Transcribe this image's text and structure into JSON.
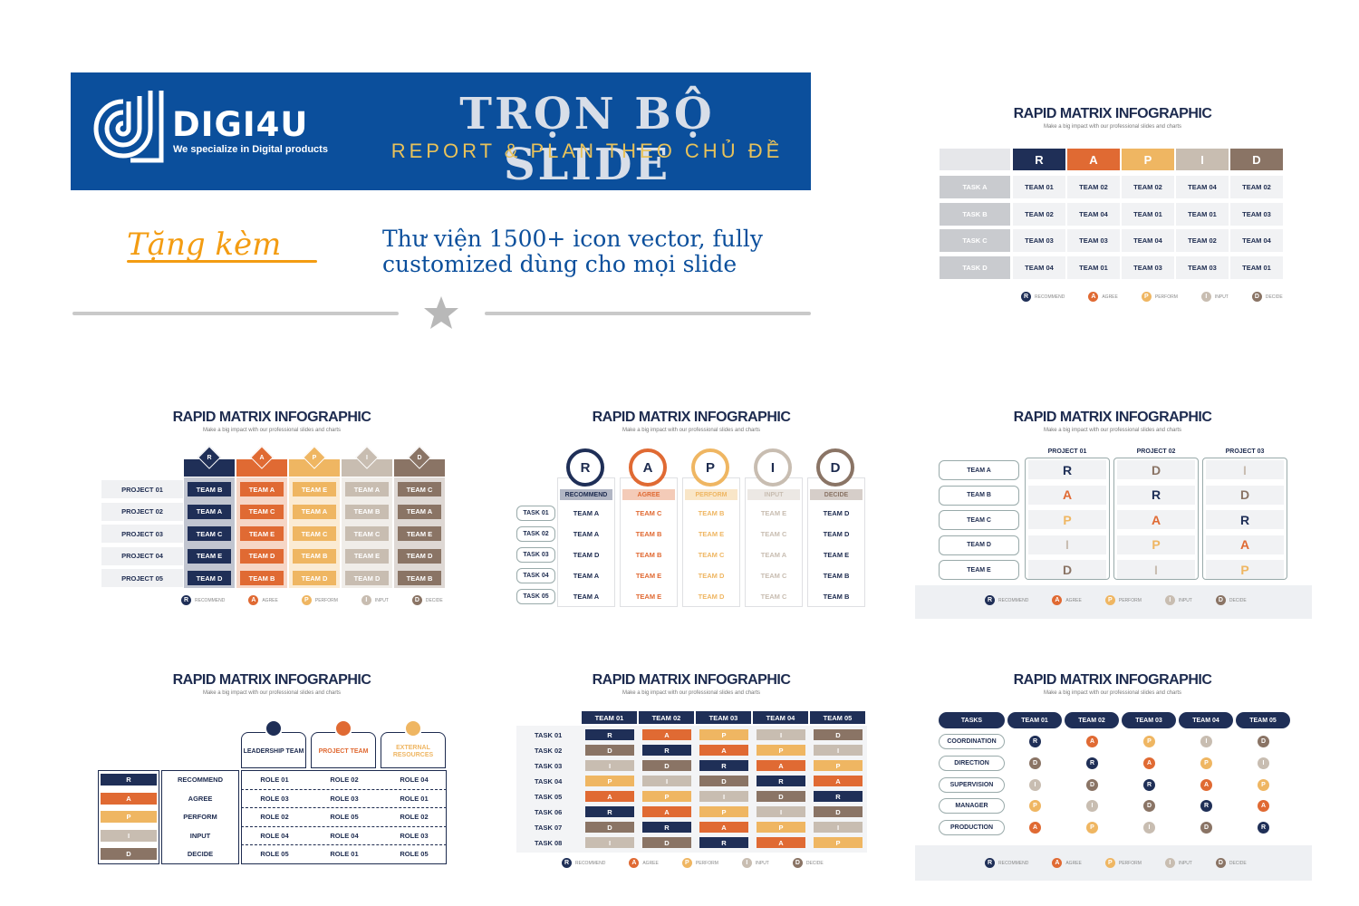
{
  "banner": {
    "brand": "DIGI4U",
    "tagline": "We specialize in Digital products",
    "title": "TRỌN BỘ SLIDE",
    "subtitle": "REPORT & PLAN THEO CHỦ ĐỀ"
  },
  "gift": {
    "label": "Tặng kèm",
    "text_line1": "Thư viện 1500+ icon vector, fully",
    "text_line2": "customized dùng cho mọi slide"
  },
  "colors": {
    "R": "#1f2f57",
    "A": "#e06a33",
    "P": "#efb662",
    "I": "#c8bdb1",
    "D": "#8a7465",
    "banner": "#0b4f9c"
  },
  "card_title": "RAPID MATRIX INFOGRAPHIC",
  "card_subtitle": "Make a big impact with our professional slides and charts",
  "legend": [
    {
      "letter": "R",
      "label": "RECOMMEND"
    },
    {
      "letter": "A",
      "label": "AGREE"
    },
    {
      "letter": "P",
      "label": "PERFORM"
    },
    {
      "letter": "I",
      "label": "INPUT"
    },
    {
      "letter": "D",
      "label": "DECIDE"
    }
  ],
  "card1": {
    "headers": [
      "R",
      "A",
      "P",
      "I",
      "D"
    ],
    "rows": [
      {
        "task": "TASK A",
        "cells": [
          "TEAM 01",
          "TEAM 02",
          "TEAM 02",
          "TEAM 04",
          "TEAM 02"
        ]
      },
      {
        "task": "TASK B",
        "cells": [
          "TEAM 02",
          "TEAM 04",
          "TEAM 01",
          "TEAM 01",
          "TEAM 03"
        ]
      },
      {
        "task": "TASK C",
        "cells": [
          "TEAM 03",
          "TEAM 03",
          "TEAM 04",
          "TEAM 02",
          "TEAM 04"
        ]
      },
      {
        "task": "TASK D",
        "cells": [
          "TEAM 04",
          "TEAM 01",
          "TEAM 03",
          "TEAM 03",
          "TEAM 01"
        ]
      }
    ]
  },
  "card2": {
    "headers": [
      "R",
      "A",
      "P",
      "I",
      "D"
    ],
    "rows": [
      {
        "project": "PROJECT 01",
        "cells": [
          "TEAM B",
          "TEAM A",
          "TEAM E",
          "TEAM A",
          "TEAM C"
        ]
      },
      {
        "project": "PROJECT 02",
        "cells": [
          "TEAM A",
          "TEAM C",
          "TEAM A",
          "TEAM B",
          "TEAM A"
        ]
      },
      {
        "project": "PROJECT 03",
        "cells": [
          "TEAM C",
          "TEAM E",
          "TEAM C",
          "TEAM C",
          "TEAM E"
        ]
      },
      {
        "project": "PROJECT 04",
        "cells": [
          "TEAM E",
          "TEAM D",
          "TEAM B",
          "TEAM E",
          "TEAM D"
        ]
      },
      {
        "project": "PROJECT 05",
        "cells": [
          "TEAM D",
          "TEAM B",
          "TEAM D",
          "TEAM D",
          "TEAM B"
        ]
      }
    ]
  },
  "card3": {
    "headers": [
      {
        "letter": "R",
        "word": "RECOMMEND"
      },
      {
        "letter": "A",
        "word": "AGREE"
      },
      {
        "letter": "P",
        "word": "PERFORM"
      },
      {
        "letter": "I",
        "word": "INPUT"
      },
      {
        "letter": "D",
        "word": "DECIDE"
      }
    ],
    "rows": [
      {
        "task": "TASK 01",
        "cells": [
          "TEAM A",
          "TEAM C",
          "TEAM B",
          "TEAM E",
          "TEAM D"
        ]
      },
      {
        "task": "TASK 02",
        "cells": [
          "TEAM A",
          "TEAM B",
          "TEAM E",
          "TEAM C",
          "TEAM D"
        ]
      },
      {
        "task": "TASK 03",
        "cells": [
          "TEAM D",
          "TEAM B",
          "TEAM C",
          "TEAM A",
          "TEAM E"
        ]
      },
      {
        "task": "TASK 04",
        "cells": [
          "TEAM A",
          "TEAM E",
          "TEAM D",
          "TEAM C",
          "TEAM B"
        ]
      },
      {
        "task": "TASK 05",
        "cells": [
          "TEAM A",
          "TEAM E",
          "TEAM D",
          "TEAM C",
          "TEAM B"
        ]
      }
    ]
  },
  "card4": {
    "projects": [
      "PROJECT 01",
      "PROJECT 02",
      "PROJECT 03"
    ],
    "teams": [
      "TEAM A",
      "TEAM B",
      "TEAM C",
      "TEAM D",
      "TEAM E"
    ],
    "cols": [
      [
        "R",
        "A",
        "P",
        "I",
        "D"
      ],
      [
        "D",
        "R",
        "A",
        "P",
        "I"
      ],
      [
        "I",
        "D",
        "R",
        "A",
        "P"
      ]
    ]
  },
  "card5": {
    "teams": [
      "LEADERSHIP TEAM",
      "PROJECT TEAM",
      "EXTERNAL RESOURCES"
    ],
    "rows": [
      {
        "letter": "R",
        "word": "RECOMMEND",
        "cells": [
          "ROLE 01",
          "ROLE 02",
          "ROLE 04"
        ]
      },
      {
        "letter": "A",
        "word": "AGREE",
        "cells": [
          "ROLE 03",
          "ROLE 03",
          "ROLE 01"
        ]
      },
      {
        "letter": "P",
        "word": "PERFORM",
        "cells": [
          "ROLE 02",
          "ROLE 05",
          "ROLE 02"
        ]
      },
      {
        "letter": "I",
        "word": "INPUT",
        "cells": [
          "ROLE 04",
          "ROLE 04",
          "ROLE 03"
        ]
      },
      {
        "letter": "D",
        "word": "DECIDE",
        "cells": [
          "ROLE 05",
          "ROLE 01",
          "ROLE 05"
        ]
      }
    ]
  },
  "card6": {
    "teams": [
      "TEAM 01",
      "TEAM 02",
      "TEAM 03",
      "TEAM 04",
      "TEAM 05"
    ],
    "rows": [
      {
        "task": "TASK 01",
        "cells": [
          "R",
          "A",
          "P",
          "I",
          "D"
        ]
      },
      {
        "task": "TASK 02",
        "cells": [
          "D",
          "R",
          "A",
          "P",
          "I"
        ]
      },
      {
        "task": "TASK 03",
        "cells": [
          "I",
          "D",
          "R",
          "A",
          "P"
        ]
      },
      {
        "task": "TASK 04",
        "cells": [
          "P",
          "I",
          "D",
          "R",
          "A"
        ]
      },
      {
        "task": "TASK 05",
        "cells": [
          "A",
          "P",
          "I",
          "D",
          "R"
        ]
      },
      {
        "task": "TASK 06",
        "cells": [
          "R",
          "A",
          "P",
          "I",
          "D"
        ]
      },
      {
        "task": "TASK 07",
        "cells": [
          "D",
          "R",
          "A",
          "P",
          "I"
        ]
      },
      {
        "task": "TASK 08",
        "cells": [
          "I",
          "D",
          "R",
          "A",
          "P"
        ]
      }
    ]
  },
  "card7": {
    "corner": "TASKS",
    "teams": [
      "TEAM 01",
      "TEAM 02",
      "TEAM 03",
      "TEAM 04",
      "TEAM 05"
    ],
    "rows": [
      {
        "task": "COORDINATION",
        "cells": [
          "R",
          "A",
          "P",
          "I",
          "D"
        ]
      },
      {
        "task": "DIRECTION",
        "cells": [
          "D",
          "R",
          "A",
          "P",
          "I"
        ]
      },
      {
        "task": "SUPERVISION",
        "cells": [
          "I",
          "D",
          "R",
          "A",
          "P"
        ]
      },
      {
        "task": "MANAGER",
        "cells": [
          "P",
          "I",
          "D",
          "R",
          "A"
        ]
      },
      {
        "task": "PRODUCTION",
        "cells": [
          "A",
          "P",
          "I",
          "D",
          "R"
        ]
      }
    ]
  }
}
